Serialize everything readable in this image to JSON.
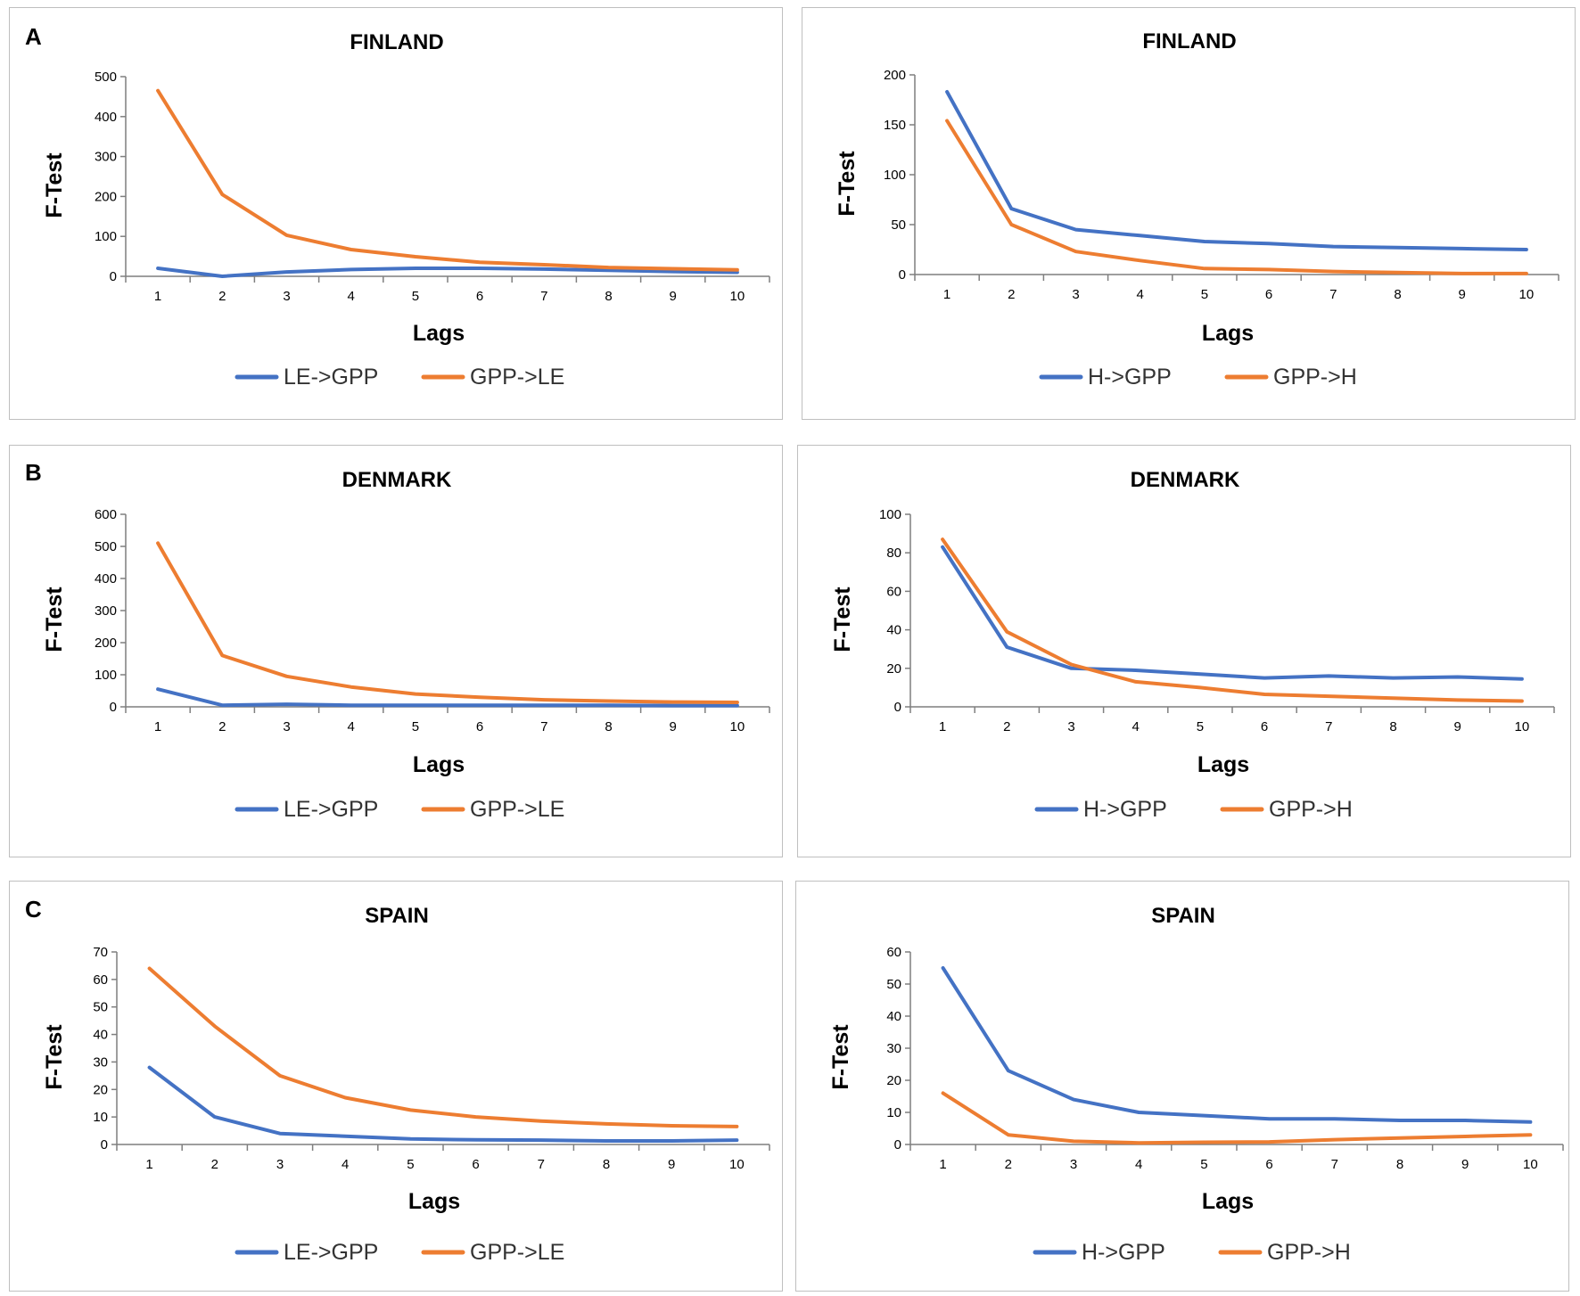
{
  "palette": {
    "series1": "#4472C4",
    "series2": "#ED7D31",
    "axis": "#7f7f7f"
  },
  "panel_letters": [
    "A",
    "B",
    "C"
  ],
  "chart_data": [
    {
      "type": "line",
      "title": "FINLAND",
      "xlabel": "Lags",
      "ylabel": "F-Test",
      "x": [
        1,
        2,
        3,
        4,
        5,
        6,
        7,
        8,
        9,
        10
      ],
      "ylim": [
        0,
        500
      ],
      "yticks": [
        0,
        100,
        200,
        300,
        400,
        500
      ],
      "series": [
        {
          "name": "LE->GPP",
          "values": [
            20,
            0,
            11,
            17,
            20,
            20,
            18,
            15,
            12,
            10
          ]
        },
        {
          "name": "GPP->LE",
          "values": [
            465,
            205,
            103,
            67,
            49,
            35,
            29,
            22,
            19,
            16
          ]
        }
      ]
    },
    {
      "type": "line",
      "title": "FINLAND",
      "xlabel": "Lags",
      "ylabel": "F-Test",
      "x": [
        1,
        2,
        3,
        4,
        5,
        6,
        7,
        8,
        9,
        10
      ],
      "ylim": [
        0,
        200
      ],
      "yticks": [
        0,
        50,
        100,
        150,
        200
      ],
      "series": [
        {
          "name": "H->GPP",
          "values": [
            183,
            66,
            45,
            39,
            33,
            31,
            28,
            27,
            26,
            25
          ]
        },
        {
          "name": "GPP->H",
          "values": [
            154,
            50,
            23,
            14,
            6,
            5,
            3,
            2,
            1,
            1
          ]
        }
      ]
    },
    {
      "type": "line",
      "title": "DENMARK",
      "xlabel": "Lags",
      "ylabel": "F-Test",
      "x": [
        1,
        2,
        3,
        4,
        5,
        6,
        7,
        8,
        9,
        10
      ],
      "ylim": [
        0,
        600
      ],
      "yticks": [
        0,
        100,
        200,
        300,
        400,
        500,
        600
      ],
      "series": [
        {
          "name": "LE->GPP",
          "values": [
            55,
            5,
            8,
            5,
            5,
            5,
            5,
            5,
            4,
            4
          ]
        },
        {
          "name": "GPP->LE",
          "values": [
            510,
            160,
            95,
            62,
            40,
            30,
            22,
            18,
            15,
            14
          ]
        }
      ]
    },
    {
      "type": "line",
      "title": "DENMARK",
      "xlabel": "Lags",
      "ylabel": "F-Test",
      "x": [
        1,
        2,
        3,
        4,
        5,
        6,
        7,
        8,
        9,
        10
      ],
      "ylim": [
        0,
        100
      ],
      "yticks": [
        0,
        20,
        40,
        60,
        80,
        100
      ],
      "series": [
        {
          "name": "H->GPP",
          "values": [
            83,
            31,
            20,
            19,
            17,
            15,
            16,
            15,
            15.5,
            14.5
          ]
        },
        {
          "name": "GPP->H",
          "values": [
            87,
            39,
            22,
            13,
            10,
            6.5,
            5.5,
            4.5,
            3.5,
            3
          ]
        }
      ]
    },
    {
      "type": "line",
      "title": "SPAIN",
      "xlabel": "Lags",
      "ylabel": "F-Test",
      "x": [
        1,
        2,
        3,
        4,
        5,
        6,
        7,
        8,
        9,
        10
      ],
      "ylim": [
        0,
        70
      ],
      "yticks": [
        0,
        10,
        20,
        30,
        40,
        50,
        60,
        70
      ],
      "series": [
        {
          "name": "LE->GPP",
          "values": [
            28,
            10,
            4,
            3,
            2,
            1.7,
            1.6,
            1.3,
            1.3,
            1.6
          ]
        },
        {
          "name": "GPP->LE",
          "values": [
            64,
            43,
            25,
            17,
            12.5,
            10,
            8.5,
            7.5,
            6.8,
            6.5
          ]
        }
      ]
    },
    {
      "type": "line",
      "title": "SPAIN",
      "xlabel": "Lags",
      "ylabel": "F-Test",
      "x": [
        1,
        2,
        3,
        4,
        5,
        6,
        7,
        8,
        9,
        10
      ],
      "ylim": [
        0,
        60
      ],
      "yticks": [
        0,
        10,
        20,
        30,
        40,
        50,
        60
      ],
      "series": [
        {
          "name": "H->GPP",
          "values": [
            55,
            23,
            14,
            10,
            9,
            8,
            8,
            7.5,
            7.5,
            7
          ]
        },
        {
          "name": "GPP->H",
          "values": [
            16,
            3,
            1,
            0.5,
            0.7,
            0.8,
            1.5,
            2,
            2.5,
            3
          ]
        }
      ]
    }
  ]
}
